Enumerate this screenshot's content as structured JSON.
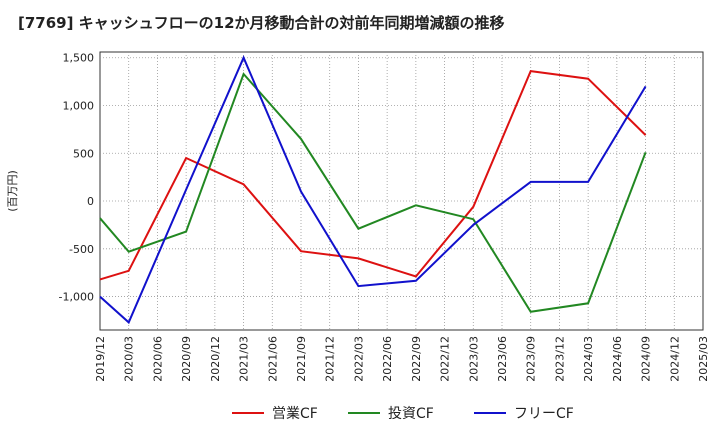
{
  "chart_data": {
    "type": "line",
    "title": "[7769]  キャッシュフローの12か月移動合計の対前年同期増減額の推移",
    "ylabel": "(百万円)",
    "xlabel": "",
    "ylim": [
      -1350,
      1560
    ],
    "yticks": [
      1500,
      1000,
      500,
      0,
      -500,
      -1000
    ],
    "ytick_labels": [
      "1,500",
      "1,000",
      "500",
      "0",
      "-500",
      "-1,000"
    ],
    "categories": [
      "2019/12",
      "2020/03",
      "2020/06",
      "2020/09",
      "2020/12",
      "2021/03",
      "2021/06",
      "2021/09",
      "2021/12",
      "2022/03",
      "2022/06",
      "2022/09",
      "2022/12",
      "2023/03",
      "2023/06",
      "2023/09",
      "2023/12",
      "2024/03",
      "2024/06",
      "2024/09",
      "2024/12",
      "2025/03"
    ],
    "series": [
      {
        "name": "営業CF",
        "color": "#dd1111",
        "values": [
          -820,
          -730,
          null,
          450,
          null,
          175,
          null,
          -525,
          null,
          -600,
          null,
          -790,
          null,
          -60,
          null,
          1360,
          null,
          1280,
          null,
          690,
          null,
          null
        ]
      },
      {
        "name": "投資CF",
        "color": "#228822",
        "values": [
          -180,
          -530,
          null,
          -320,
          null,
          1330,
          null,
          650,
          null,
          -290,
          null,
          -45,
          null,
          -190,
          null,
          -1160,
          null,
          -1070,
          null,
          510,
          null,
          null
        ]
      },
      {
        "name": "フリーCF",
        "color": "#1111cc",
        "values": [
          -1000,
          -1270,
          null,
          120,
          null,
          1500,
          null,
          100,
          null,
          -890,
          null,
          -835,
          null,
          -250,
          null,
          200,
          null,
          200,
          null,
          1200,
          null,
          null
        ]
      }
    ],
    "legend": "bottom"
  }
}
